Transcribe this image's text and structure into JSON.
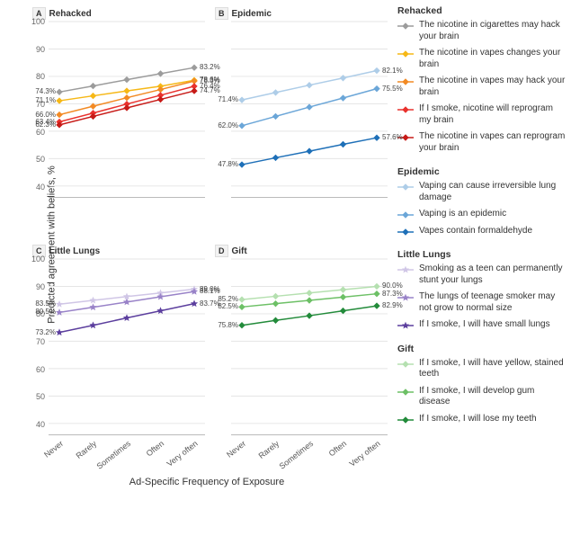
{
  "axis": {
    "y_label": "Predicted agreement with beliefs, %",
    "x_label": "Ad-Specific Frequency of Exposure",
    "ylim": [
      36,
      100
    ],
    "yticks": [
      40,
      50,
      60,
      70,
      80,
      90,
      100
    ],
    "xcats": [
      "Never",
      "Rarely",
      "Sometimes",
      "Often",
      "Very often"
    ],
    "grid_color": "#e5e5e5",
    "background_color": "#ffffff",
    "tick_fontsize": 9,
    "title_fontsize": 10
  },
  "panels": [
    {
      "letter": "A",
      "title": "Rehacked",
      "show_yticks": true,
      "show_xticks": false,
      "series": [
        {
          "color": "#9c9c9c",
          "marker": "diamond",
          "values": [
            74.3,
            76.5,
            78.8,
            81.0,
            83.2
          ],
          "start_label": "74.3%",
          "end_label": "83.2%"
        },
        {
          "color": "#f6b817",
          "marker": "diamond",
          "values": [
            71.1,
            72.9,
            74.7,
            76.4,
            78.6
          ],
          "start_label": "71.1%",
          "end_label": "78.6%"
        },
        {
          "color": "#f28a24",
          "marker": "diamond",
          "values": [
            66.0,
            69.1,
            72.2,
            75.2,
            78.3
          ],
          "start_label": "66.0%",
          "end_label": "78.3%"
        },
        {
          "color": "#e9322e",
          "marker": "diamond",
          "values": [
            63.4,
            66.6,
            69.9,
            73.1,
            76.4
          ],
          "start_label": "63.4%",
          "end_label": "76.4%"
        },
        {
          "color": "#c71b18",
          "marker": "diamond",
          "values": [
            62.3,
            65.4,
            68.5,
            71.6,
            74.7
          ],
          "start_label": "62.3%",
          "end_label": "74.7%"
        }
      ]
    },
    {
      "letter": "B",
      "title": "Epidemic",
      "show_yticks": false,
      "show_xticks": false,
      "series": [
        {
          "color": "#aecde8",
          "marker": "diamond",
          "values": [
            71.4,
            74.1,
            76.8,
            79.4,
            82.1
          ],
          "start_label": "71.4%",
          "end_label": "82.1%"
        },
        {
          "color": "#6ba6d8",
          "marker": "diamond",
          "values": [
            62.0,
            65.4,
            68.8,
            72.1,
            75.5
          ],
          "start_label": "62.0%",
          "end_label": "75.5%"
        },
        {
          "color": "#1f70b8",
          "marker": "diamond",
          "values": [
            47.8,
            50.3,
            52.7,
            55.2,
            57.6
          ],
          "start_label": "47.8%",
          "end_label": "57.6%"
        }
      ]
    },
    {
      "letter": "C",
      "title": "Little Lungs",
      "show_yticks": true,
      "show_xticks": true,
      "series": [
        {
          "color": "#d0c6e6",
          "marker": "star",
          "values": [
            83.5,
            84.9,
            86.3,
            87.6,
            89.0
          ],
          "start_label": "83.5%",
          "end_label": "89.0%"
        },
        {
          "color": "#9983c8",
          "marker": "star",
          "values": [
            80.5,
            82.4,
            84.3,
            86.2,
            88.1
          ],
          "start_label": "80.5%",
          "end_label": "88.1%"
        },
        {
          "color": "#5c3f9e",
          "marker": "star",
          "values": [
            73.2,
            75.8,
            78.5,
            81.1,
            83.7
          ],
          "start_label": "73.2%",
          "end_label": "83.7%"
        }
      ]
    },
    {
      "letter": "D",
      "title": "Gift",
      "show_yticks": false,
      "show_xticks": true,
      "series": [
        {
          "color": "#b5e0b0",
          "marker": "diamond",
          "values": [
            85.2,
            86.4,
            87.6,
            88.8,
            90.0
          ],
          "start_label": "85.2%",
          "end_label": "90.0%"
        },
        {
          "color": "#6dc066",
          "marker": "diamond",
          "values": [
            82.5,
            83.7,
            84.9,
            86.1,
            87.3
          ],
          "start_label": "82.5%",
          "end_label": "87.3%"
        },
        {
          "color": "#238b3b",
          "marker": "diamond",
          "values": [
            75.8,
            77.6,
            79.3,
            81.1,
            82.9
          ],
          "start_label": "75.8%",
          "end_label": "82.9%"
        }
      ]
    }
  ],
  "legend": [
    {
      "title": "Rehacked",
      "items": [
        {
          "color": "#9c9c9c",
          "marker": "diamond",
          "text": "The nicotine in cigarettes may hack your brain"
        },
        {
          "color": "#f6b817",
          "marker": "diamond",
          "text": "The nicotine in vapes changes your brain"
        },
        {
          "color": "#f28a24",
          "marker": "diamond",
          "text": "The nicotine in vapes may hack your brain"
        },
        {
          "color": "#e9322e",
          "marker": "diamond",
          "text": "If I smoke, nicotine will reprogram my brain"
        },
        {
          "color": "#c71b18",
          "marker": "diamond",
          "text": "The nicotine in vapes can reprogram your brain"
        }
      ]
    },
    {
      "title": "Epidemic",
      "items": [
        {
          "color": "#aecde8",
          "marker": "diamond",
          "text": "Vaping can cause irreversible lung damage"
        },
        {
          "color": "#6ba6d8",
          "marker": "diamond",
          "text": "Vaping is an epidemic"
        },
        {
          "color": "#1f70b8",
          "marker": "diamond",
          "text": "Vapes contain formaldehyde"
        }
      ]
    },
    {
      "title": "Little Lungs",
      "items": [
        {
          "color": "#d0c6e6",
          "marker": "star",
          "text": "Smoking as a teen can permanently stunt your lungs"
        },
        {
          "color": "#9983c8",
          "marker": "star",
          "text": "The lungs of teenage smoker may not grow to normal size"
        },
        {
          "color": "#5c3f9e",
          "marker": "star",
          "text": "If I smoke, I will have small lungs"
        }
      ]
    },
    {
      "title": "Gift",
      "items": [
        {
          "color": "#b5e0b0",
          "marker": "diamond",
          "text": "If I smoke, I will have yellow, stained teeth"
        },
        {
          "color": "#6dc066",
          "marker": "diamond",
          "text": "If I smoke, I will develop gum disease"
        },
        {
          "color": "#238b3b",
          "marker": "diamond",
          "text": "If I smoke, I will lose my teeth"
        }
      ]
    }
  ]
}
